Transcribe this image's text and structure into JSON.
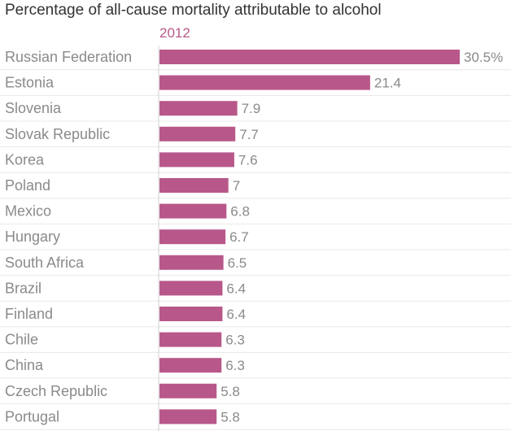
{
  "colors": {
    "bar": "#b8588a",
    "subtitle": "#b8588a",
    "gridline": "#e8e8e8",
    "axis": "#d0d0d0",
    "label": "#8a8a8a",
    "title": "#333333"
  },
  "chart_data": {
    "type": "bar",
    "orientation": "horizontal",
    "title": "Percentage of all-cause mortality attributable to alcohol",
    "subtitle": "2012",
    "categories": [
      "Russian Federation",
      "Estonia",
      "Slovenia",
      "Slovak Republic",
      "Korea",
      "Poland",
      "Mexico",
      "Hungary",
      "South Africa",
      "Brazil",
      "Finland",
      "Chile",
      "China",
      "Czech Republic",
      "Portugal"
    ],
    "values": [
      30.5,
      21.4,
      7.9,
      7.7,
      7.6,
      7,
      6.8,
      6.7,
      6.5,
      6.4,
      6.4,
      6.3,
      6.3,
      5.8,
      5.8
    ],
    "value_labels": [
      "30.5%",
      "21.4",
      "7.9",
      "7.7",
      "7.6",
      "7",
      "6.8",
      "6.7",
      "6.5",
      "6.4",
      "6.4",
      "6.3",
      "6.3",
      "5.8",
      "5.8"
    ],
    "xlim": [
      0,
      30.5
    ],
    "grid": true,
    "legend": "none"
  }
}
